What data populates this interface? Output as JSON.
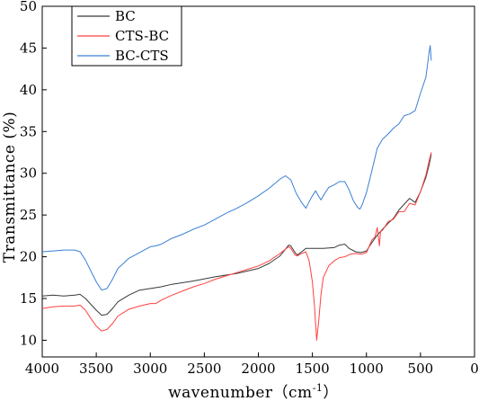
{
  "chart_data": {
    "type": "line",
    "xlabel": "wavenumber（cm",
    "xlabel_sup": "-1",
    "xlabel_close": "）",
    "ylabel": "Transmittance (%)",
    "xlim": [
      4000,
      0
    ],
    "ylim": [
      8,
      50
    ],
    "x_reversed": true,
    "xticks": [
      4000,
      3500,
      3000,
      2500,
      2000,
      1500,
      1000,
      500,
      0
    ],
    "yticks": [
      10,
      15,
      20,
      25,
      30,
      35,
      40,
      45,
      50
    ],
    "grid": false,
    "legend_position": "top-left",
    "series": [
      {
        "name": "BC",
        "color": "#3a3a3a",
        "points": [
          [
            4000,
            15.3
          ],
          [
            3900,
            15.4
          ],
          [
            3800,
            15.3
          ],
          [
            3700,
            15.4
          ],
          [
            3650,
            15.5
          ],
          [
            3600,
            15.0
          ],
          [
            3550,
            14.3
          ],
          [
            3500,
            13.6
          ],
          [
            3450,
            13.0
          ],
          [
            3400,
            13.1
          ],
          [
            3350,
            13.8
          ],
          [
            3300,
            14.6
          ],
          [
            3200,
            15.4
          ],
          [
            3100,
            16.0
          ],
          [
            3000,
            16.2
          ],
          [
            2900,
            16.4
          ],
          [
            2800,
            16.7
          ],
          [
            2600,
            17.1
          ],
          [
            2400,
            17.6
          ],
          [
            2200,
            18.0
          ],
          [
            2000,
            18.6
          ],
          [
            1900,
            19.2
          ],
          [
            1800,
            20.1
          ],
          [
            1750,
            20.9
          ],
          [
            1720,
            21.4
          ],
          [
            1700,
            21.3
          ],
          [
            1660,
            20.5
          ],
          [
            1640,
            20.2
          ],
          [
            1600,
            20.6
          ],
          [
            1560,
            21.0
          ],
          [
            1500,
            21.0
          ],
          [
            1400,
            21.0
          ],
          [
            1300,
            21.1
          ],
          [
            1250,
            21.4
          ],
          [
            1200,
            21.5
          ],
          [
            1160,
            21.0
          ],
          [
            1100,
            20.6
          ],
          [
            1050,
            20.5
          ],
          [
            1000,
            20.7
          ],
          [
            950,
            21.7
          ],
          [
            900,
            22.6
          ],
          [
            850,
            23.3
          ],
          [
            800,
            24.0
          ],
          [
            750,
            24.6
          ],
          [
            700,
            25.6
          ],
          [
            650,
            26.3
          ],
          [
            600,
            27.0
          ],
          [
            550,
            26.5
          ],
          [
            500,
            27.8
          ],
          [
            450,
            29.5
          ],
          [
            420,
            31.0
          ],
          [
            400,
            32.3
          ]
        ]
      },
      {
        "name": "CTS-BC",
        "color": "#ff4040",
        "points": [
          [
            4000,
            13.8
          ],
          [
            3900,
            14.0
          ],
          [
            3800,
            14.1
          ],
          [
            3700,
            14.1
          ],
          [
            3650,
            14.2
          ],
          [
            3600,
            13.6
          ],
          [
            3550,
            12.6
          ],
          [
            3500,
            11.7
          ],
          [
            3450,
            11.1
          ],
          [
            3400,
            11.3
          ],
          [
            3350,
            12.0
          ],
          [
            3300,
            12.9
          ],
          [
            3200,
            13.7
          ],
          [
            3100,
            14.1
          ],
          [
            3000,
            14.4
          ],
          [
            2950,
            14.4
          ],
          [
            2900,
            14.8
          ],
          [
            2800,
            15.4
          ],
          [
            2700,
            15.9
          ],
          [
            2600,
            16.4
          ],
          [
            2500,
            16.8
          ],
          [
            2400,
            17.3
          ],
          [
            2300,
            17.7
          ],
          [
            2200,
            18.1
          ],
          [
            2100,
            18.5
          ],
          [
            2000,
            18.9
          ],
          [
            1900,
            19.5
          ],
          [
            1800,
            20.4
          ],
          [
            1750,
            20.9
          ],
          [
            1720,
            21.2
          ],
          [
            1700,
            21.0
          ],
          [
            1660,
            20.2
          ],
          [
            1640,
            20.1
          ],
          [
            1600,
            20.4
          ],
          [
            1560,
            20.6
          ],
          [
            1530,
            19.5
          ],
          [
            1500,
            17.0
          ],
          [
            1480,
            14.0
          ],
          [
            1460,
            10.0
          ],
          [
            1440,
            12.5
          ],
          [
            1420,
            15.5
          ],
          [
            1400,
            17.5
          ],
          [
            1350,
            18.9
          ],
          [
            1300,
            19.5
          ],
          [
            1250,
            19.9
          ],
          [
            1200,
            20.0
          ],
          [
            1150,
            20.3
          ],
          [
            1100,
            20.4
          ],
          [
            1050,
            20.3
          ],
          [
            1000,
            20.5
          ],
          [
            950,
            22.0
          ],
          [
            920,
            22.4
          ],
          [
            900,
            23.5
          ],
          [
            880,
            21.3
          ],
          [
            870,
            23.0
          ],
          [
            850,
            23.2
          ],
          [
            800,
            24.2
          ],
          [
            750,
            24.5
          ],
          [
            700,
            25.4
          ],
          [
            650,
            25.4
          ],
          [
            600,
            26.4
          ],
          [
            550,
            26.2
          ],
          [
            500,
            27.8
          ],
          [
            450,
            29.8
          ],
          [
            420,
            31.5
          ],
          [
            400,
            32.5
          ]
        ]
      },
      {
        "name": "BC-CTS",
        "color": "#3a7fd5",
        "points": [
          [
            4000,
            20.6
          ],
          [
            3900,
            20.7
          ],
          [
            3800,
            20.8
          ],
          [
            3700,
            20.8
          ],
          [
            3650,
            20.6
          ],
          [
            3600,
            19.6
          ],
          [
            3550,
            18.3
          ],
          [
            3500,
            17.0
          ],
          [
            3450,
            16.0
          ],
          [
            3400,
            16.2
          ],
          [
            3350,
            17.3
          ],
          [
            3300,
            18.6
          ],
          [
            3200,
            19.8
          ],
          [
            3100,
            20.5
          ],
          [
            3000,
            21.2
          ],
          [
            2950,
            21.3
          ],
          [
            2900,
            21.5
          ],
          [
            2800,
            22.2
          ],
          [
            2700,
            22.7
          ],
          [
            2600,
            23.3
          ],
          [
            2500,
            23.8
          ],
          [
            2400,
            24.5
          ],
          [
            2300,
            25.2
          ],
          [
            2200,
            25.8
          ],
          [
            2100,
            26.5
          ],
          [
            2000,
            27.3
          ],
          [
            1900,
            28.2
          ],
          [
            1800,
            29.3
          ],
          [
            1750,
            29.7
          ],
          [
            1700,
            29.2
          ],
          [
            1650,
            27.6
          ],
          [
            1600,
            26.5
          ],
          [
            1560,
            25.8
          ],
          [
            1530,
            26.6
          ],
          [
            1500,
            27.3
          ],
          [
            1470,
            27.9
          ],
          [
            1440,
            27.2
          ],
          [
            1420,
            26.8
          ],
          [
            1400,
            27.3
          ],
          [
            1350,
            28.3
          ],
          [
            1300,
            28.6
          ],
          [
            1250,
            29.0
          ],
          [
            1200,
            29.0
          ],
          [
            1160,
            28.0
          ],
          [
            1120,
            26.7
          ],
          [
            1080,
            25.9
          ],
          [
            1060,
            25.7
          ],
          [
            1040,
            26.2
          ],
          [
            1000,
            27.7
          ],
          [
            950,
            30.3
          ],
          [
            900,
            33.0
          ],
          [
            850,
            34.1
          ],
          [
            800,
            34.7
          ],
          [
            750,
            35.4
          ],
          [
            700,
            35.9
          ],
          [
            650,
            36.9
          ],
          [
            600,
            37.1
          ],
          [
            550,
            37.5
          ],
          [
            500,
            39.6
          ],
          [
            450,
            41.5
          ],
          [
            420,
            44.5
          ],
          [
            410,
            45.3
          ],
          [
            400,
            43.5
          ]
        ]
      }
    ]
  }
}
